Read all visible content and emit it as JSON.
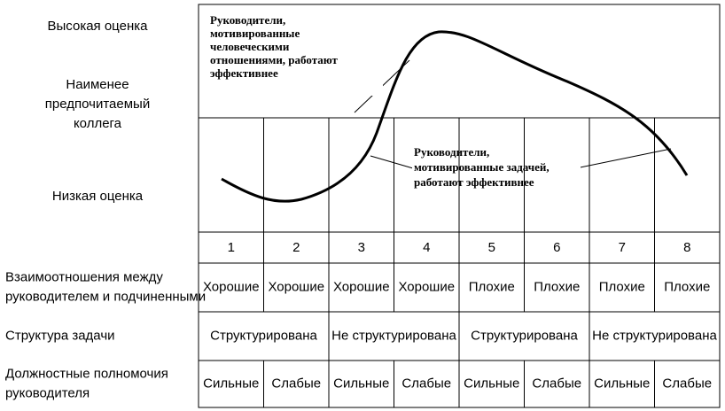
{
  "axis_labels": {
    "high": "Высокая оценка",
    "lpc": [
      "Наименее",
      "предпочитаемый",
      "коллега"
    ],
    "low": "Низкая оценка"
  },
  "annotations": [
    {
      "lines": [
        "Руководители,",
        "мотивированные",
        "человеческими",
        "отношениями, работают",
        "эффективнее"
      ]
    },
    {
      "lines": [
        "Руководители,",
        "мотивированные задачей,",
        "работают эффективнее"
      ]
    }
  ],
  "columns": [
    "1",
    "2",
    "3",
    "4",
    "5",
    "6",
    "7",
    "8"
  ],
  "rows": [
    {
      "label": [
        "Взаимоотношения  между",
        "руководителем и подчиненными"
      ],
      "cells": [
        "Хорошие",
        "Хорошие",
        "Хорошие",
        "Хорошие",
        "Плохие",
        "Плохие",
        "Плохие",
        "Плохие"
      ]
    },
    {
      "label": [
        "Структура задачи"
      ],
      "cells": [
        "Структурирована",
        "Не структурирована",
        "Структурирована",
        "Не структурирована"
      ]
    },
    {
      "label": [
        "Должностные полномочия",
        "руководителя"
      ],
      "cells": [
        "Сильные",
        "Слабые",
        "Сильные",
        "Слабые",
        "Сильные",
        "Слабые",
        "Сильные",
        "Слабые"
      ]
    }
  ]
}
